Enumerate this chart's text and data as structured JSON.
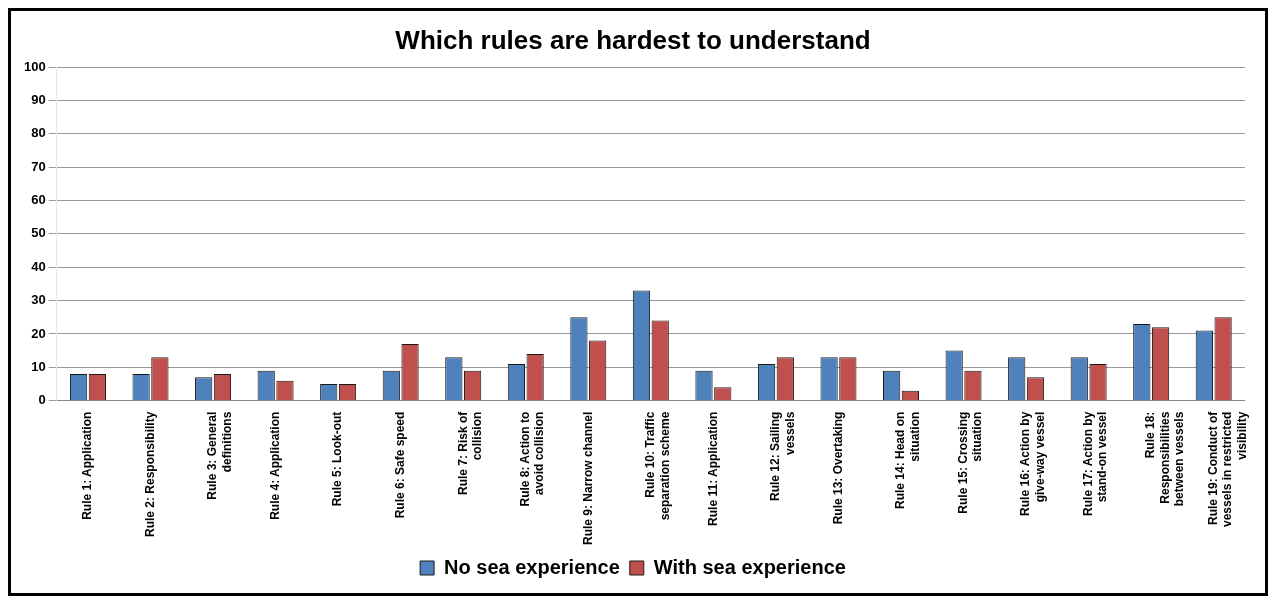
{
  "chart_data": {
    "type": "bar",
    "title": "Which rules are hardest to understand",
    "categories": [
      "Rule 1: Application",
      "Rule 2: Responsibility",
      "Rule 3: General definitions",
      "Rule 4: Application",
      "Rule 5: Look-out",
      "Rule 6: Safe speed",
      "Rule 7: Risk of collision",
      "Rule 8: Action to avoid collision",
      "Rule 9: Narrow channel",
      "Rule 10: Traffic separation scheme",
      "Rule 11: Application",
      "Rule 12: Sailing vessels",
      "Rule 13: Overtaking",
      "Rule 14: Head on situation",
      "Rule 15: Crossing situation",
      "Rule 16: Action by give-way vessel",
      "Rule 17: Action by stand-on vessel",
      "Rule 18: Responsibilities between vessels",
      "Rule 19: Conduct of vessels in restricted visibility"
    ],
    "series": [
      {
        "name": "No sea experience",
        "color": "#4f81bd",
        "values": [
          8,
          8,
          7,
          9,
          5,
          9,
          13,
          11,
          25,
          33,
          9,
          11,
          13,
          9,
          15,
          13,
          13,
          23,
          21
        ]
      },
      {
        "name": "With sea experience",
        "color": "#c0504d",
        "values": [
          8,
          13,
          8,
          6,
          5,
          17,
          9,
          14,
          18,
          24,
          4,
          13,
          13,
          3,
          9,
          7,
          11,
          22,
          25
        ]
      }
    ],
    "ylim": [
      0,
      100
    ],
    "yticks": [
      0,
      10,
      20,
      30,
      40,
      50,
      60,
      70,
      80,
      90,
      100
    ],
    "grid": "y",
    "legend": "bottom"
  }
}
